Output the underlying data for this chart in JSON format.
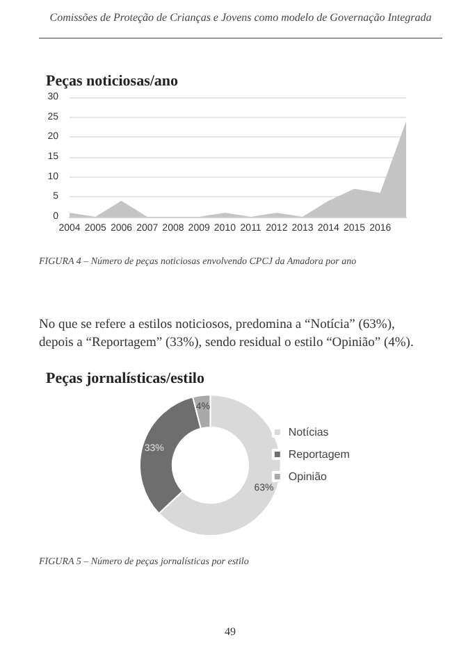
{
  "chart_data": [
    {
      "type": "area",
      "title": "Peças noticiosas/ano",
      "annotations": [
        "Comissões de Proteção de Crianças e Jovens como modelo de Governação Integrada",
        "FIGURA 4 – Número de peças noticiosas envolvendo CPCJ da Amadora por ano"
      ],
      "categories": [
        "2004",
        "2005",
        "2006",
        "2007",
        "2008",
        "2009",
        "2010",
        "2011",
        "2012",
        "2013",
        "2014",
        "2015",
        "2016",
        null
      ],
      "values": [
        1,
        0,
        4,
        0,
        0,
        0,
        1,
        0,
        1,
        0,
        4,
        7,
        6,
        24
      ],
      "color": "#c4c4c4",
      "ylim": [
        0,
        30
      ],
      "yticks": [
        0,
        5,
        10,
        15,
        20,
        25,
        30
      ],
      "grid": "y",
      "legend": false
    },
    {
      "type": "donut",
      "title": "Peças jornalísticas/estilo",
      "annotations": [
        "No que se refere a estilos noticiosos, predomina a “Notícia” (63%), depois a “Reportagem” (33%), sendo residual o estilo “Opinião” (4%).",
        "FIGURA 5 – Número de peças jornalísticas por estilo",
        "49"
      ],
      "categories": [
        "Notícias",
        "Reportagem",
        "Opinião"
      ],
      "values": [
        63,
        33,
        4
      ],
      "colors": [
        "#d9d9d9",
        "#6e6e6e",
        "#a9a9a9"
      ],
      "value_labels": [
        "63%",
        "33%",
        "4%"
      ],
      "legend": "right"
    }
  ]
}
